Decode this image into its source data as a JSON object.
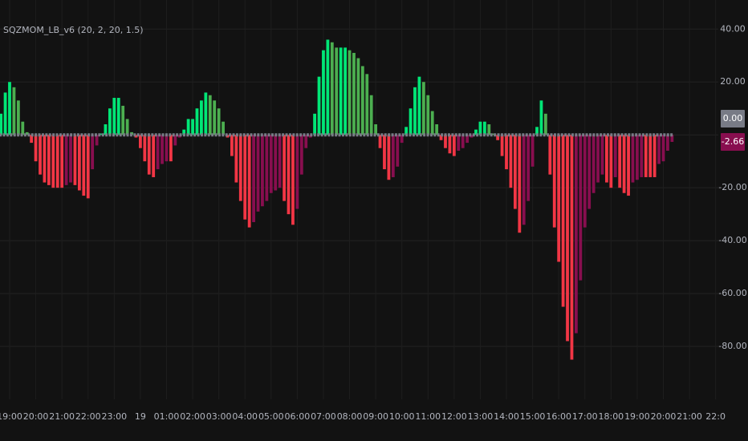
{
  "chart_data": {
    "type": "bar",
    "title": "SQZMOM_LB_v6 (20, 2, 20, 1.5)",
    "categories": [
      null,
      null,
      "19:00",
      null,
      null,
      null,
      null,
      null,
      "20:00",
      null,
      null,
      null,
      null,
      null,
      "21:00",
      null,
      null,
      null,
      null,
      null,
      "22:00",
      null,
      null,
      null,
      null,
      null,
      "23:00",
      null,
      null,
      null,
      null,
      null,
      "19",
      null,
      null,
      null,
      null,
      null,
      "01:00",
      null,
      null,
      null,
      null,
      null,
      "02:00",
      null,
      null,
      null,
      null,
      null,
      "03:00",
      null,
      null,
      null,
      null,
      null,
      "04:00",
      null,
      null,
      null,
      null,
      null,
      "05:00",
      null,
      null,
      null,
      null,
      null,
      "06:00",
      null,
      null,
      null,
      null,
      null,
      "07:00",
      null,
      null,
      null,
      null,
      null,
      "08:00",
      null,
      null,
      null,
      null,
      null,
      "09:00",
      null,
      null,
      null,
      null,
      null,
      "10:00",
      null,
      null,
      null,
      null,
      null,
      "11:00",
      null,
      null,
      null,
      null,
      null,
      "12:00",
      null,
      null,
      null,
      null,
      null,
      "13:00",
      null,
      null,
      null,
      null,
      null,
      "14:00",
      null,
      null,
      null,
      null,
      null,
      "15:00",
      null,
      null,
      null,
      null,
      null,
      "16:00",
      null,
      null,
      null,
      null,
      null,
      "17:00",
      null,
      null,
      null,
      null,
      null,
      "18:00",
      null,
      null,
      null,
      null,
      null,
      "19:00",
      null,
      null,
      null,
      null,
      null,
      "20:00",
      null,
      null,
      null,
      null,
      null,
      "21:00",
      null,
      null,
      null,
      null,
      null,
      "22:0"
    ],
    "values": [
      8,
      16,
      20,
      18,
      13,
      5,
      1,
      -3,
      -10,
      -15,
      -18,
      -19,
      -20,
      -20,
      -20,
      -19,
      -18,
      -19,
      -21,
      -23,
      -24,
      -13,
      -4,
      0.5,
      4,
      10,
      14,
      14,
      11,
      6,
      1,
      -1,
      -5,
      -10,
      -15,
      -16,
      -13,
      -11,
      -10,
      -10,
      -4,
      -1,
      2,
      6,
      6,
      10,
      13,
      16,
      15,
      13,
      10,
      5,
      -1,
      -8,
      -18,
      -25,
      -32,
      -35,
      -33,
      -29,
      -27,
      -25,
      -22,
      -21,
      -20,
      -25,
      -30,
      -34,
      -28,
      -15,
      -5,
      -1,
      8,
      22,
      32,
      36,
      35,
      33,
      33,
      33,
      32,
      31,
      29,
      26,
      23,
      15,
      4,
      -5,
      -13,
      -17,
      -16,
      -12,
      -3,
      3,
      10,
      18,
      22,
      20,
      15,
      9,
      4,
      -2,
      -5,
      -7,
      -8,
      -6,
      -5,
      -3,
      -1,
      2,
      5,
      5,
      4,
      0.5,
      -2,
      -8,
      -13,
      -20,
      -28,
      -37,
      -34,
      -25,
      -12,
      3,
      13,
      8,
      -15,
      -35,
      -48,
      -65,
      -78,
      -85,
      -75,
      -55,
      -35,
      -28,
      -22,
      -18,
      -15,
      -18,
      -20,
      -16,
      -20,
      -22,
      -23,
      -18,
      -17,
      -16,
      -16,
      -16,
      -16,
      -11,
      -10,
      -6,
      -2.66,
      null,
      null,
      null,
      null,
      null,
      null,
      null,
      null,
      null,
      null
    ],
    "palette": [
      "#00e676",
      "#4caf50",
      "#f23645",
      "#880e4f"
    ],
    "ylim": [
      -100,
      51
    ],
    "yticks": [
      {
        "value": 40,
        "label": "40.00"
      },
      {
        "value": 20,
        "label": "20.00"
      },
      {
        "value": -20,
        "label": "-20.00"
      },
      {
        "value": -40,
        "label": "-40.00"
      },
      {
        "value": -60,
        "label": "-60.00"
      },
      {
        "value": -80,
        "label": "-80.00"
      }
    ],
    "grid": true,
    "last_value_labels": [
      {
        "value": 0,
        "label": "0.00",
        "color": "#787b86"
      },
      {
        "value": -2.66,
        "label": "-2.66",
        "color": "#880e4f"
      }
    ]
  }
}
